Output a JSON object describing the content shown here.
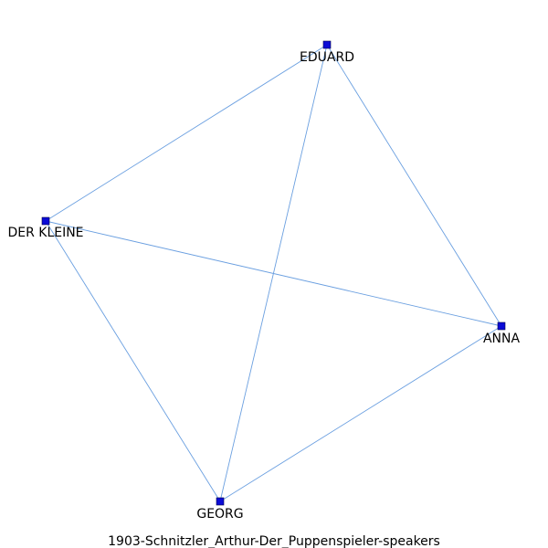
{
  "caption": "1903-Schnitzler_Arthur-Der_Puppenspieler-speakers",
  "graph": {
    "nodes": [
      {
        "id": "eduard",
        "label": "EDUARD"
      },
      {
        "id": "der_kleine",
        "label": "DER KLEINE"
      },
      {
        "id": "anna",
        "label": "ANNA"
      },
      {
        "id": "georg",
        "label": "GEORG"
      }
    ],
    "edges": [
      {
        "source": "eduard",
        "target": "der_kleine"
      },
      {
        "source": "eduard",
        "target": "georg"
      },
      {
        "source": "eduard",
        "target": "anna"
      },
      {
        "source": "der_kleine",
        "target": "anna"
      },
      {
        "source": "der_kleine",
        "target": "georg"
      },
      {
        "source": "georg",
        "target": "anna"
      }
    ]
  },
  "colors": {
    "edge": "#6a9fe0",
    "node": "#0b0bd6"
  }
}
